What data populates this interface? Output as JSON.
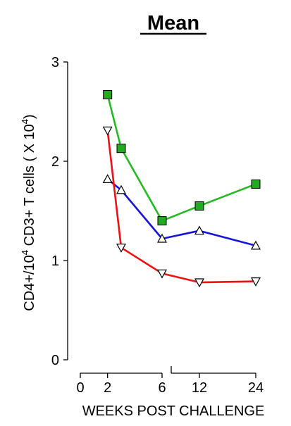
{
  "chart_data": {
    "type": "line",
    "title": "Mean",
    "xlabel": "WEEKS POST CHALLENGE",
    "ylabel_main": "CD4+/10",
    "ylabel_sup1": "4",
    "ylabel_mid": " CD3+ T cells ( X 10",
    "ylabel_sup2": "4",
    "ylabel_end": ")",
    "ylim": [
      0,
      3
    ],
    "y_ticks": [
      "0",
      "1",
      "2",
      "3"
    ],
    "x_ticks": [
      "0",
      "2",
      "6",
      "12",
      "24"
    ],
    "x_axis_break_between": [
      6,
      12
    ],
    "series": [
      {
        "marker": "square-filled",
        "color": "#22bb22",
        "marker_fill": "#22aa22",
        "x": [
          2,
          3,
          6,
          12,
          24
        ],
        "y": [
          2.67,
          2.13,
          1.4,
          1.55,
          1.77
        ]
      },
      {
        "marker": "triangle-up",
        "color": "#1515dd",
        "marker_fill": "#ffffff",
        "x": [
          2,
          3,
          6,
          12,
          24
        ],
        "y": [
          1.82,
          1.71,
          1.22,
          1.3,
          1.15
        ]
      },
      {
        "marker": "triangle-down",
        "color": "#ee1111",
        "marker_fill": "#ffffff",
        "x": [
          2,
          3,
          6,
          12,
          24
        ],
        "y": [
          2.31,
          1.13,
          0.87,
          0.78,
          0.79
        ]
      }
    ]
  }
}
